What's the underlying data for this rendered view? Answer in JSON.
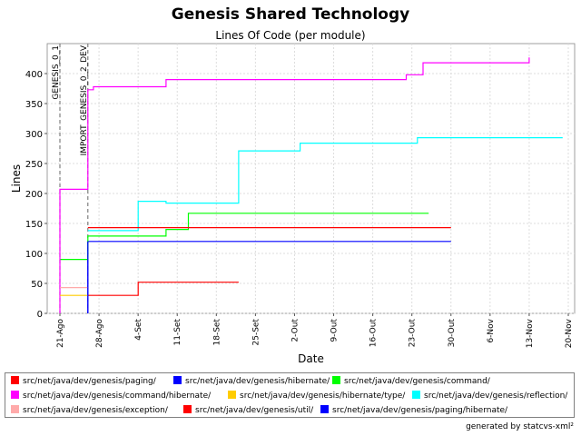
{
  "chart_data": {
    "type": "line",
    "title": "Genesis Shared Technology",
    "subtitle": "Lines Of Code (per module)",
    "xlabel": "Date",
    "ylabel": "Lines",
    "x_start": "2004-08-19",
    "xlim_days": [
      0,
      93
    ],
    "ylim": [
      0,
      450
    ],
    "yticks": [
      0,
      50,
      100,
      150,
      200,
      250,
      300,
      350,
      400
    ],
    "xticks": [
      {
        "day": 2,
        "label": "21-Ago"
      },
      {
        "day": 9,
        "label": "28-Ago"
      },
      {
        "day": 16,
        "label": "4-Set"
      },
      {
        "day": 23,
        "label": "11-Set"
      },
      {
        "day": 30,
        "label": "18-Set"
      },
      {
        "day": 37,
        "label": "25-Set"
      },
      {
        "day": 44,
        "label": "2-Out"
      },
      {
        "day": 51,
        "label": "9-Out"
      },
      {
        "day": 58,
        "label": "16-Out"
      },
      {
        "day": 65,
        "label": "23-Out"
      },
      {
        "day": 72,
        "label": "30-Out"
      },
      {
        "day": 79,
        "label": "6-Nov"
      },
      {
        "day": 86,
        "label": "13-Nov"
      },
      {
        "day": 93,
        "label": "20-Nov"
      }
    ],
    "grid": true,
    "legend_position": "bottom",
    "markers": [
      {
        "label": "GENESIS_0_1",
        "day": 2
      },
      {
        "label": "IMPORT_GENESIS_0_2_DEV",
        "day": 7
      }
    ],
    "series": [
      {
        "name": "src/net/java/dev/genesis/paging/",
        "color": "#ff0000",
        "points": [
          [
            7,
            30
          ],
          [
            16,
            30
          ],
          [
            16,
            52
          ],
          [
            34,
            52
          ]
        ]
      },
      {
        "name": "src/net/java/dev/genesis/hibernate/",
        "color": "#0000ff",
        "points": [
          [
            7,
            0
          ],
          [
            7,
            120
          ],
          [
            72,
            120
          ]
        ]
      },
      {
        "name": "src/net/java/dev/genesis/command/",
        "color": "#00ff00",
        "points": [
          [
            2,
            90
          ],
          [
            7,
            90
          ],
          [
            7,
            129
          ],
          [
            21,
            129
          ],
          [
            21,
            140
          ],
          [
            25,
            140
          ],
          [
            25,
            167
          ],
          [
            68,
            167
          ]
        ]
      },
      {
        "name": "src/net/java/dev/genesis/command/hibernate/",
        "color": "#ff00ff",
        "points": [
          [
            2,
            0
          ],
          [
            2,
            207
          ],
          [
            7,
            207
          ],
          [
            7,
            373
          ],
          [
            8,
            373
          ],
          [
            8,
            378
          ],
          [
            21,
            378
          ],
          [
            21,
            390
          ],
          [
            64,
            390
          ],
          [
            64,
            398
          ],
          [
            67,
            398
          ],
          [
            67,
            418
          ],
          [
            86,
            418
          ],
          [
            86,
            427
          ]
        ]
      },
      {
        "name": "src/net/java/dev/genesis/hibernate/type/",
        "color": "#ffcc00",
        "points": [
          [
            2,
            30
          ],
          [
            7,
            30
          ]
        ]
      },
      {
        "name": "src/net/java/dev/genesis/reflection/",
        "color": "#00ffff",
        "points": [
          [
            7,
            138
          ],
          [
            16,
            138
          ],
          [
            16,
            187
          ],
          [
            21,
            187
          ],
          [
            21,
            184
          ],
          [
            34,
            184
          ],
          [
            34,
            271
          ],
          [
            45,
            271
          ],
          [
            45,
            284
          ],
          [
            66,
            284
          ],
          [
            66,
            293
          ],
          [
            92,
            293
          ]
        ]
      },
      {
        "name": "src/net/java/dev/genesis/exception/",
        "color": "#ffaaaa",
        "points": [
          [
            2,
            43
          ],
          [
            7,
            43
          ]
        ]
      },
      {
        "name": "src/net/java/dev/genesis/util/",
        "color": "#ff0000",
        "points": [
          [
            7,
            143
          ],
          [
            72,
            143
          ]
        ]
      },
      {
        "name": "src/net/java/dev/genesis/paging/hibernate/",
        "color": "#0000ff",
        "points": [
          [
            7,
            0
          ],
          [
            7,
            120
          ]
        ]
      }
    ]
  },
  "footer": "generated by statcvs-xml²"
}
